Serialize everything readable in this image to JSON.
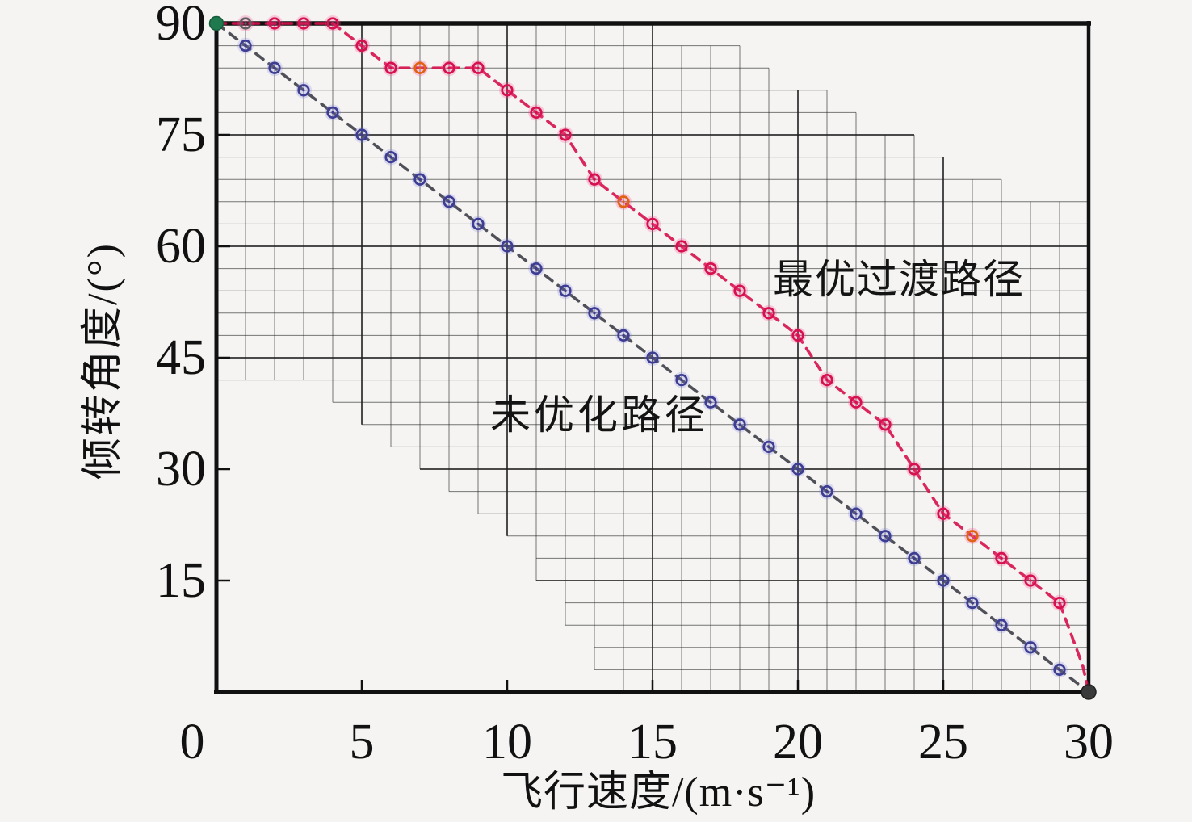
{
  "chart_data": {
    "type": "line",
    "title": "",
    "xlabel": "飞行速度/(m·s⁻¹)",
    "ylabel": "倾转角度/(°)",
    "xlim": [
      0,
      30
    ],
    "ylim": [
      0,
      90
    ],
    "grid_on": true,
    "x_ticks": {
      "values": [
        0,
        5,
        10,
        15,
        20,
        25,
        30
      ],
      "labels": [
        "0",
        "5",
        "10",
        "15",
        "20",
        "25",
        "30"
      ]
    },
    "y_ticks": {
      "values": [
        90,
        75,
        60,
        45,
        30,
        15
      ],
      "labels": [
        "90",
        "75",
        "60",
        "45",
        "30",
        "15"
      ]
    },
    "grid_band": {
      "comment_x_cell_step": 1,
      "comment_y_row_step_deg": 3,
      "upper_deg_per_column": [
        90,
        90,
        90,
        90,
        90,
        90,
        90,
        90,
        90,
        90,
        90,
        90,
        90,
        90,
        90,
        87,
        87,
        87,
        84,
        81,
        81,
        78,
        75,
        75,
        72,
        69,
        69,
        66,
        66,
        66
      ],
      "lower_deg_per_column": [
        42,
        42,
        42,
        42,
        39,
        36,
        33,
        30,
        27,
        24,
        21,
        15,
        9,
        3,
        0,
        0,
        0,
        0,
        0,
        0,
        0,
        0,
        0,
        0,
        0,
        0,
        0,
        0,
        0,
        0
      ]
    },
    "series": [
      {
        "name": "最优过渡路径",
        "color": "#d6114d",
        "halo": "rgba(255,70,150,0.26)",
        "x": [
          0,
          1,
          2,
          3,
          4,
          5,
          6,
          7,
          8,
          9,
          10,
          11,
          12,
          13,
          14,
          15,
          16,
          17,
          18,
          19,
          20,
          21,
          22,
          23,
          24,
          25,
          26,
          27,
          28,
          29,
          30
        ],
        "y": [
          90,
          90,
          90,
          90,
          90,
          87,
          84,
          84,
          84,
          84,
          81,
          78,
          75,
          69,
          66,
          63,
          60,
          57,
          54,
          51,
          48,
          42,
          39,
          36,
          30,
          24,
          21,
          18,
          15,
          12,
          0
        ],
        "tail": [
          [
            29.5,
            6.7
          ],
          [
            29.8,
            3.5
          ],
          [
            30,
            0
          ]
        ],
        "marker_color_overrides": {
          "1": "#5f5f5f",
          "7": "#e06312",
          "14": "#e06312",
          "26": "#e06312"
        }
      },
      {
        "name": "未优化路径",
        "color": "#3d3d93",
        "line_color": "#3e3e48",
        "halo": "rgba(120,120,220,0.22)",
        "x": [
          0,
          1,
          2,
          3,
          4,
          5,
          6,
          7,
          8,
          9,
          10,
          11,
          12,
          13,
          14,
          15,
          16,
          17,
          18,
          19,
          20,
          21,
          22,
          23,
          24,
          25,
          26,
          27,
          28,
          29,
          30
        ],
        "y": [
          90,
          87,
          84,
          81,
          78,
          75,
          72,
          69,
          66,
          63,
          60,
          57,
          54,
          51,
          48,
          45,
          42,
          39,
          36,
          33,
          30,
          27,
          24,
          21,
          18,
          15,
          12,
          9,
          6,
          3,
          0
        ]
      }
    ],
    "start_point": {
      "x": 0,
      "y": 90,
      "color": "#1e7a4e"
    },
    "end_point": {
      "x": 30,
      "y": 0,
      "color": "#3a3a3a"
    },
    "annotations": [
      {
        "text": "最优过渡路径",
        "for_series": "最优过渡路径"
      },
      {
        "text": "未优化路径",
        "for_series": "未优化路径"
      }
    ]
  }
}
